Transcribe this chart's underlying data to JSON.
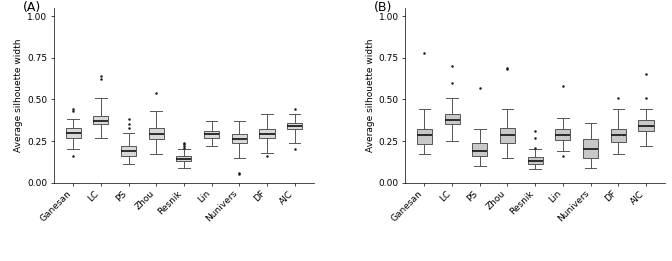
{
  "categories": [
    "Ganesan",
    "LC",
    "PS",
    "Zhou",
    "Resnik",
    "Lin",
    "Nunivers",
    "DF",
    "AIC"
  ],
  "panel_A": {
    "label": "(A)",
    "boxes": [
      {
        "q1": 0.27,
        "median": 0.3,
        "q3": 0.33,
        "whisker_low": 0.2,
        "whisker_high": 0.38,
        "outliers": [
          0.43,
          0.44,
          0.16
        ]
      },
      {
        "q1": 0.35,
        "median": 0.37,
        "q3": 0.4,
        "whisker_low": 0.27,
        "whisker_high": 0.51,
        "outliers": [
          0.62,
          0.64
        ]
      },
      {
        "q1": 0.16,
        "median": 0.19,
        "q3": 0.22,
        "whisker_low": 0.11,
        "whisker_high": 0.3,
        "outliers": [
          0.33,
          0.35,
          0.38
        ]
      },
      {
        "q1": 0.26,
        "median": 0.29,
        "q3": 0.33,
        "whisker_low": 0.17,
        "whisker_high": 0.43,
        "outliers": [
          0.54
        ]
      },
      {
        "q1": 0.13,
        "median": 0.145,
        "q3": 0.16,
        "whisker_low": 0.09,
        "whisker_high": 0.2,
        "outliers": [
          0.21,
          0.22,
          0.23,
          0.24
        ]
      },
      {
        "q1": 0.27,
        "median": 0.29,
        "q3": 0.31,
        "whisker_low": 0.22,
        "whisker_high": 0.37,
        "outliers": []
      },
      {
        "q1": 0.24,
        "median": 0.265,
        "q3": 0.29,
        "whisker_low": 0.15,
        "whisker_high": 0.37,
        "outliers": [
          0.05,
          0.06
        ]
      },
      {
        "q1": 0.27,
        "median": 0.295,
        "q3": 0.32,
        "whisker_low": 0.18,
        "whisker_high": 0.41,
        "outliers": [
          0.16
        ]
      },
      {
        "q1": 0.32,
        "median": 0.34,
        "q3": 0.36,
        "whisker_low": 0.24,
        "whisker_high": 0.41,
        "outliers": [
          0.2,
          0.44
        ]
      }
    ],
    "box_color": "#d8d8d8",
    "median_color": "#1a1a1a",
    "ylim": [
      0.0,
      1.05
    ],
    "yticks": [
      0.0,
      0.25,
      0.5,
      0.75,
      1.0
    ]
  },
  "panel_B": {
    "label": "(B)",
    "boxes": [
      {
        "q1": 0.23,
        "median": 0.285,
        "q3": 0.32,
        "whisker_low": 0.17,
        "whisker_high": 0.44,
        "outliers": [
          0.78
        ]
      },
      {
        "q1": 0.35,
        "median": 0.375,
        "q3": 0.41,
        "whisker_low": 0.25,
        "whisker_high": 0.51,
        "outliers": [
          0.7,
          0.6
        ]
      },
      {
        "q1": 0.16,
        "median": 0.19,
        "q3": 0.24,
        "whisker_low": 0.1,
        "whisker_high": 0.32,
        "outliers": [
          0.57
        ]
      },
      {
        "q1": 0.24,
        "median": 0.285,
        "q3": 0.33,
        "whisker_low": 0.15,
        "whisker_high": 0.44,
        "outliers": [
          0.68,
          0.69
        ]
      },
      {
        "q1": 0.11,
        "median": 0.13,
        "q3": 0.155,
        "whisker_low": 0.085,
        "whisker_high": 0.2,
        "outliers": [
          0.21,
          0.27,
          0.31
        ]
      },
      {
        "q1": 0.255,
        "median": 0.285,
        "q3": 0.32,
        "whisker_low": 0.19,
        "whisker_high": 0.39,
        "outliers": [
          0.16,
          0.58
        ]
      },
      {
        "q1": 0.15,
        "median": 0.2,
        "q3": 0.26,
        "whisker_low": 0.09,
        "whisker_high": 0.36,
        "outliers": []
      },
      {
        "q1": 0.245,
        "median": 0.285,
        "q3": 0.32,
        "whisker_low": 0.17,
        "whisker_high": 0.44,
        "outliers": [
          0.51
        ]
      },
      {
        "q1": 0.31,
        "median": 0.34,
        "q3": 0.375,
        "whisker_low": 0.22,
        "whisker_high": 0.44,
        "outliers": [
          0.51,
          0.65
        ]
      }
    ],
    "box_color": "#c8c8c8",
    "median_color": "#1a1a1a",
    "ylim": [
      0.0,
      1.05
    ],
    "yticks": [
      0.0,
      0.25,
      0.5,
      0.75,
      1.0
    ]
  },
  "ylabel": "Average silhouette width",
  "xlabel_rotation": 45,
  "background_color": "#ffffff",
  "box_width": 0.55,
  "linewidth": 0.7,
  "flier_size": 1.8,
  "font_size": 6.5
}
